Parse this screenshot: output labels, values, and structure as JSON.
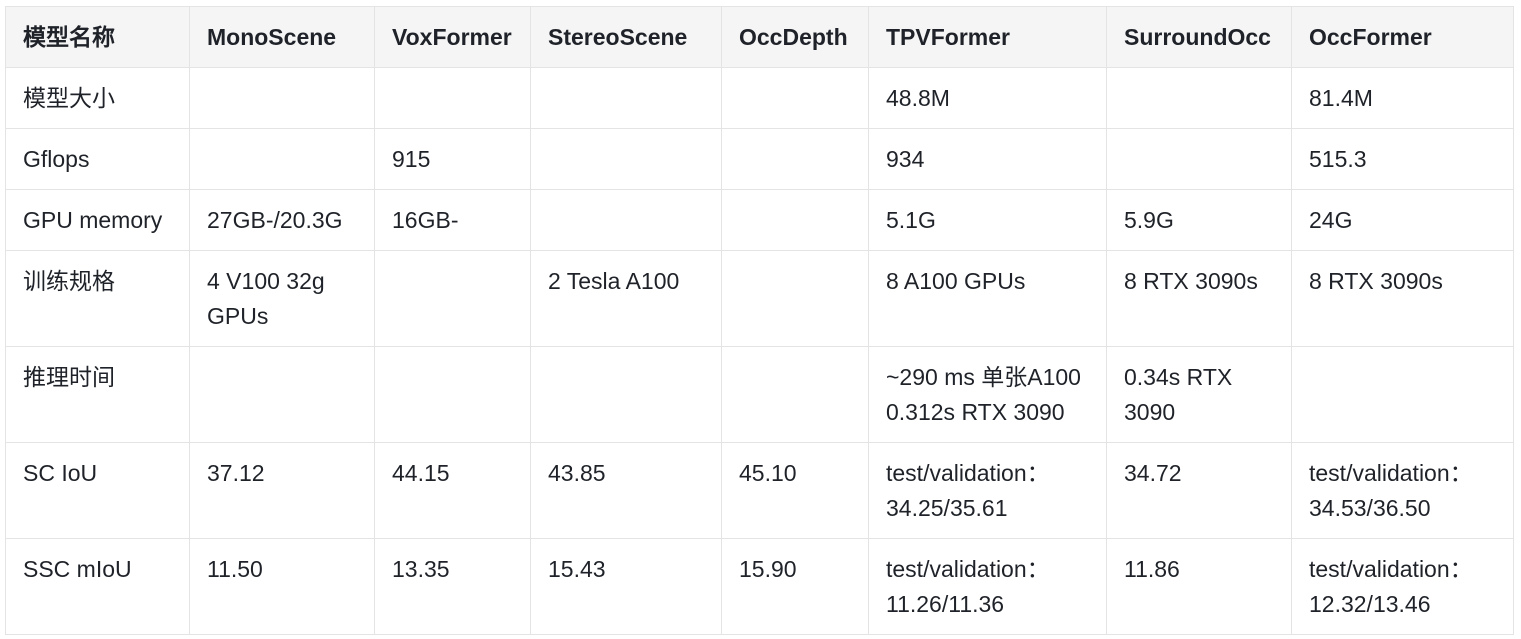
{
  "table": {
    "headers": [
      "模型名称",
      "MonoScene",
      "VoxFormer",
      "StereoScene",
      "OccDepth",
      "TPVFormer",
      "SurroundOcc",
      "OccFormer"
    ],
    "rows": [
      {
        "label": "模型大小",
        "cells": [
          "",
          "",
          "",
          "",
          "48.8M",
          "",
          "81.4M"
        ]
      },
      {
        "label": "Gflops",
        "cells": [
          "",
          "915",
          "",
          "",
          "934",
          "",
          "515.3"
        ]
      },
      {
        "label": "GPU memory",
        "cells": [
          "27GB-/20.3G",
          "16GB-",
          "",
          "",
          "5.1G",
          "5.9G",
          "24G"
        ]
      },
      {
        "label": "训练规格",
        "cells": [
          "4 V100 32g\nGPUs",
          "",
          "2 Tesla A100",
          "",
          "8 A100 GPUs",
          "8 RTX 3090s",
          "8 RTX 3090s"
        ]
      },
      {
        "label": "推理时间",
        "cells": [
          "",
          "",
          "",
          "",
          "~290 ms 单张A100\n0.312s RTX 3090",
          "0.34s  RTX\n3090",
          ""
        ]
      },
      {
        "label": "SC IoU",
        "cells": [
          "37.12",
          "44.15",
          "43.85",
          "45.10",
          "test/validation：\n34.25/35.61",
          "34.72",
          "test/validation：\n34.53/36.50"
        ]
      },
      {
        "label": "SSC mIoU",
        "cells": [
          "11.50",
          "13.35",
          "15.43",
          "15.90",
          "test/validation：\n11.26/11.36",
          "11.86",
          "test/validation：\n12.32/13.46"
        ]
      }
    ]
  }
}
